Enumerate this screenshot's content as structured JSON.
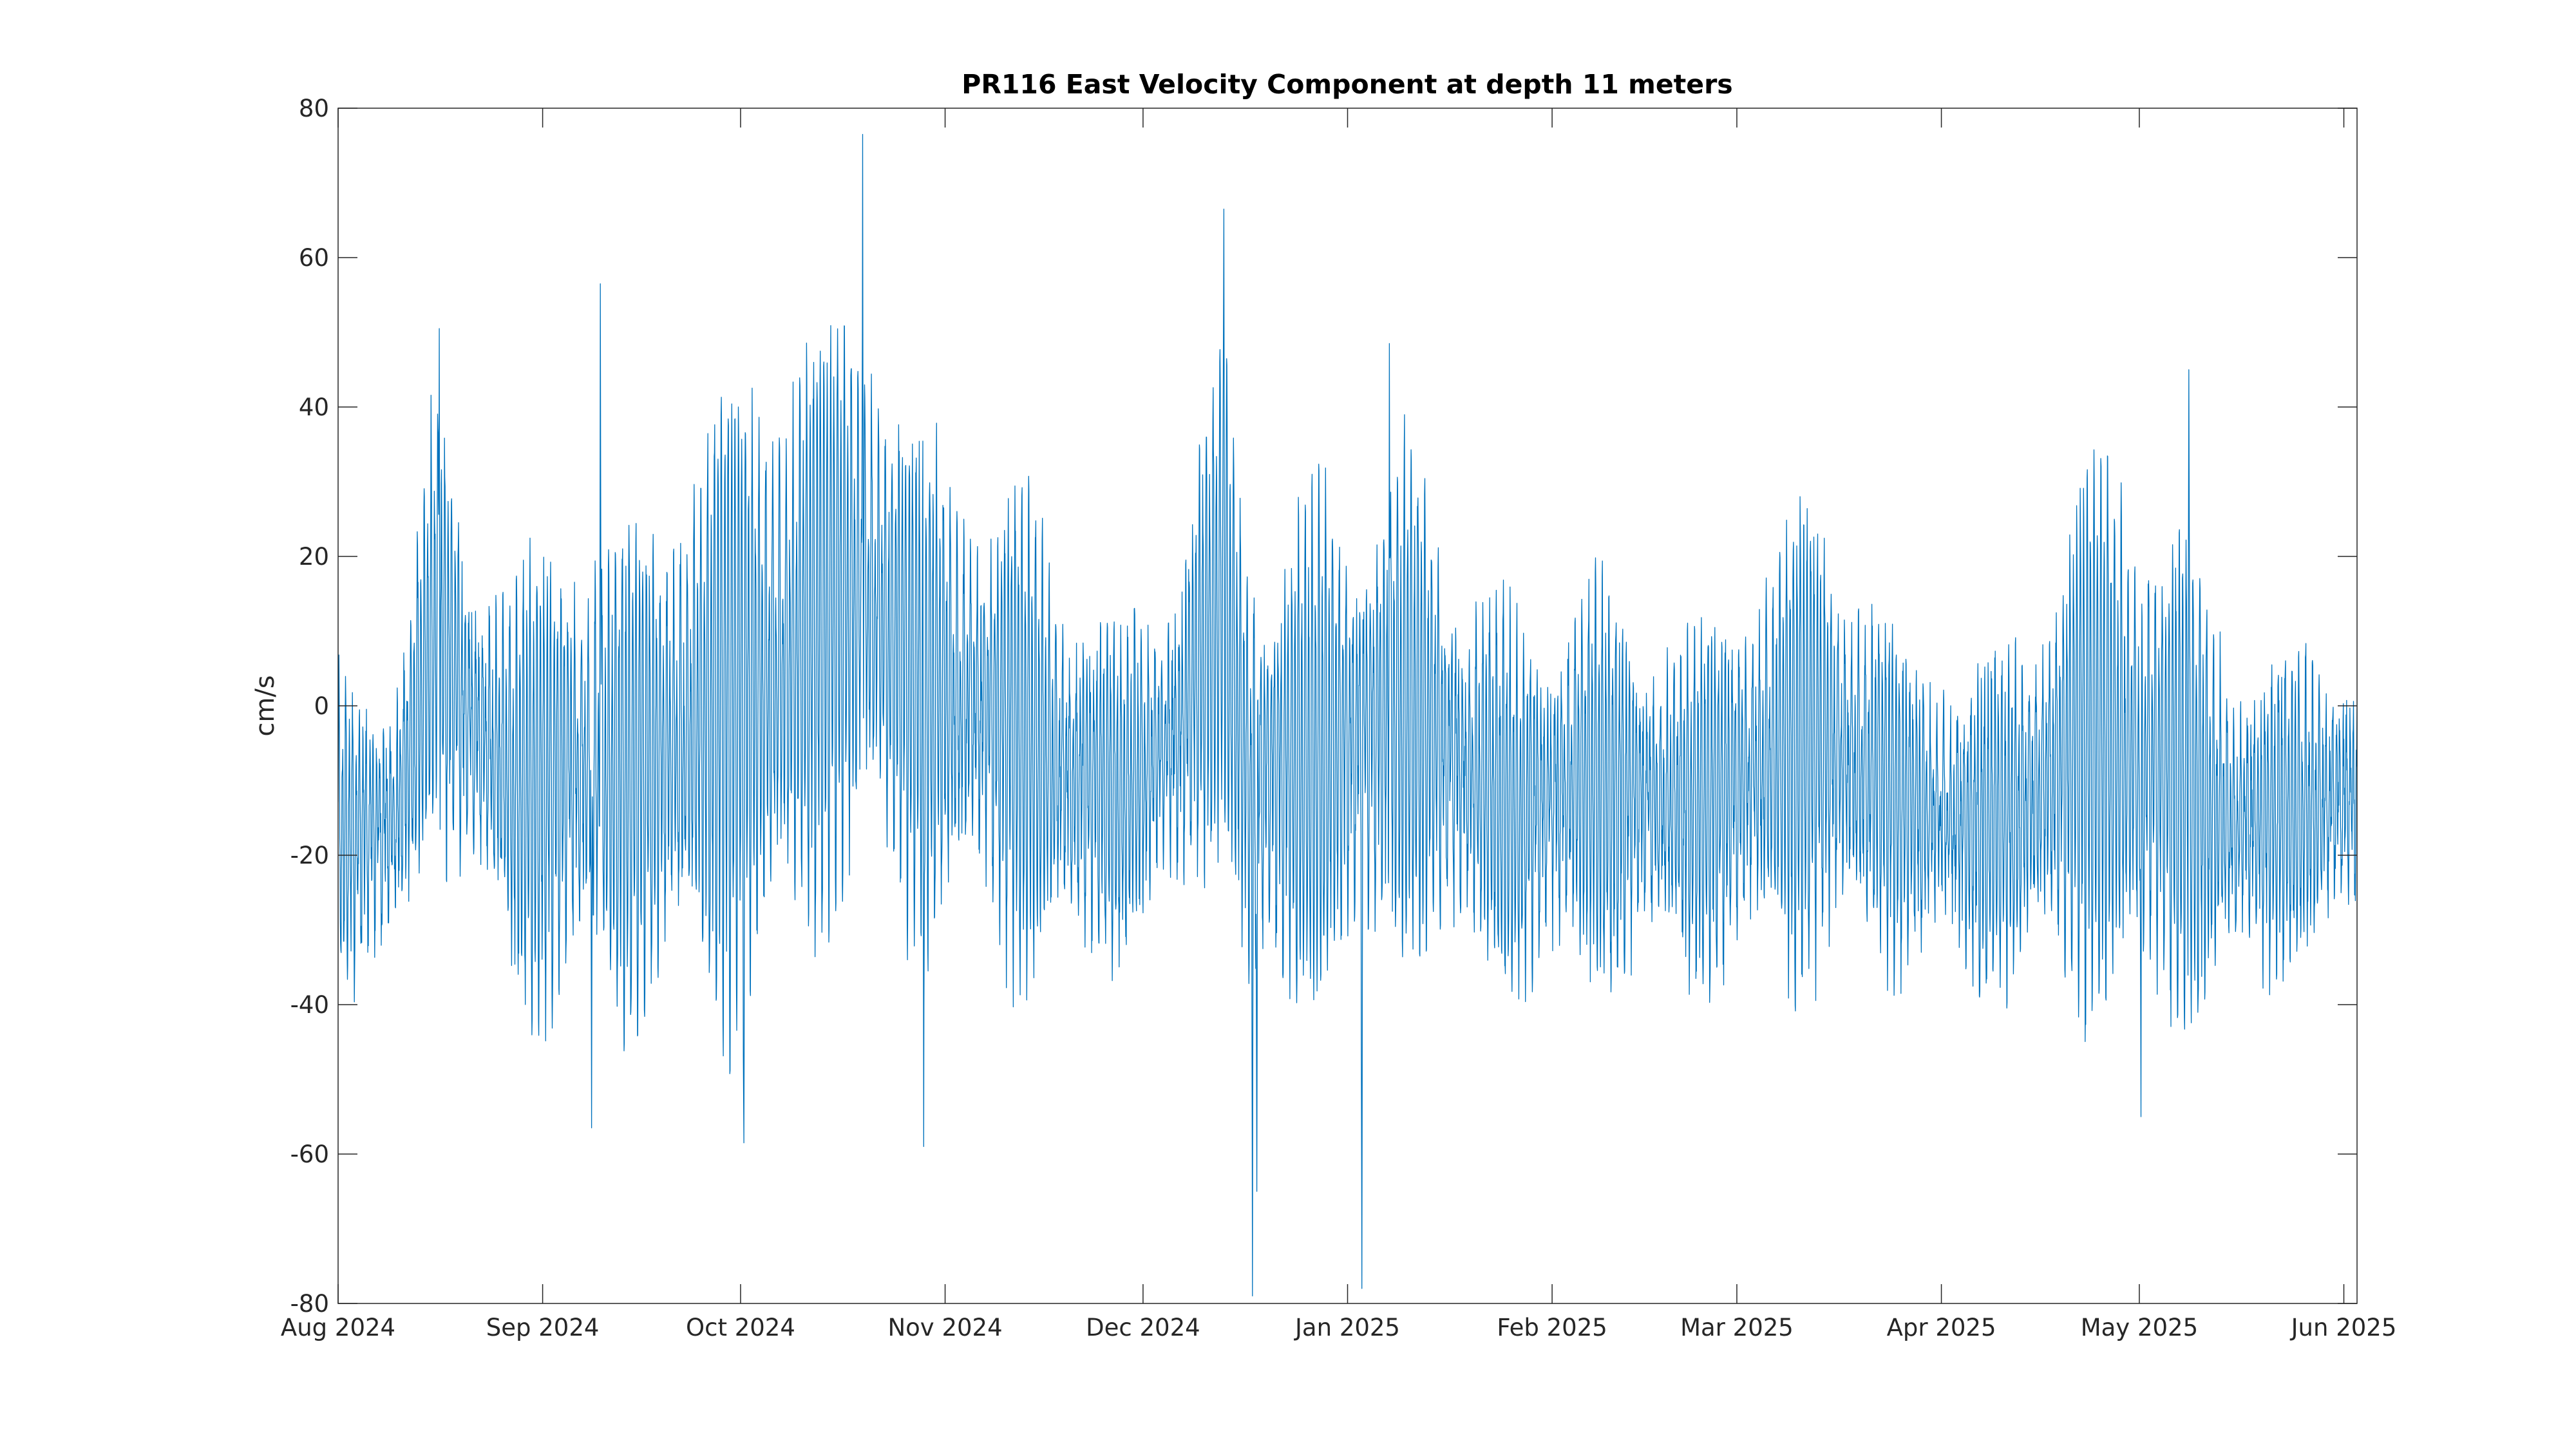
{
  "chart_data": {
    "type": "line",
    "title": "PR116 East Velocity Component at depth 11 meters",
    "xlabel": "",
    "ylabel": "cm/s",
    "x_type": "date",
    "xlim": [
      "2024-08-01",
      "2025-06-03"
    ],
    "ylim": [
      -80,
      80
    ],
    "yticks": [
      -80,
      -60,
      -40,
      -20,
      0,
      20,
      40,
      60,
      80
    ],
    "xticks": [
      {
        "date": "2024-08-01",
        "label": "Aug 2024"
      },
      {
        "date": "2024-09-01",
        "label": "Sep 2024"
      },
      {
        "date": "2024-10-01",
        "label": "Oct 2024"
      },
      {
        "date": "2024-11-01",
        "label": "Nov 2024"
      },
      {
        "date": "2024-12-01",
        "label": "Dec 2024"
      },
      {
        "date": "2025-01-01",
        "label": "Jan 2025"
      },
      {
        "date": "2025-02-01",
        "label": "Feb 2025"
      },
      {
        "date": "2025-03-01",
        "label": "Mar 2025"
      },
      {
        "date": "2025-04-01",
        "label": "Apr 2025"
      },
      {
        "date": "2025-05-01",
        "label": "May 2025"
      },
      {
        "date": "2025-06-01",
        "label": "Jun 2025"
      }
    ],
    "grid": false,
    "legend": "none",
    "series": [
      {
        "color": "#0072BD",
        "sampling": "hourly, tidal oscillation (~12.42 h period) about a daily-mean level",
        "daily_mean": [
          {
            "date": "2024-08-01",
            "value": -18,
            "amplitude": 16
          },
          {
            "date": "2024-08-10",
            "value": -15,
            "amplitude": 18
          },
          {
            "date": "2024-08-16",
            "value": 12,
            "amplitude": 25
          },
          {
            "date": "2024-08-20",
            "value": 0,
            "amplitude": 22
          },
          {
            "date": "2024-08-28",
            "value": -12,
            "amplitude": 24
          },
          {
            "date": "2024-09-05",
            "value": -8,
            "amplitude": 30
          },
          {
            "date": "2024-09-12",
            "value": -10,
            "amplitude": 28
          },
          {
            "date": "2024-09-20",
            "value": -6,
            "amplitude": 30
          },
          {
            "date": "2024-09-28",
            "value": 0,
            "amplitude": 38
          },
          {
            "date": "2024-10-06",
            "value": 4,
            "amplitude": 40
          },
          {
            "date": "2024-10-14",
            "value": 12,
            "amplitude": 34
          },
          {
            "date": "2024-10-20",
            "value": 15,
            "amplitude": 36
          },
          {
            "date": "2024-10-28",
            "value": 3,
            "amplitude": 30
          },
          {
            "date": "2024-11-06",
            "value": 0,
            "amplitude": 24
          },
          {
            "date": "2024-11-14",
            "value": -5,
            "amplitude": 28
          },
          {
            "date": "2024-11-20",
            "value": -10,
            "amplitude": 22
          },
          {
            "date": "2024-11-28",
            "value": -12,
            "amplitude": 18
          },
          {
            "date": "2024-12-06",
            "value": -4,
            "amplitude": 22
          },
          {
            "date": "2024-12-13",
            "value": 15,
            "amplitude": 28
          },
          {
            "date": "2024-12-17",
            "value": -10,
            "amplitude": 30
          },
          {
            "date": "2024-12-24",
            "value": -8,
            "amplitude": 28
          },
          {
            "date": "2025-01-01",
            "value": -5,
            "amplitude": 30
          },
          {
            "date": "2025-01-10",
            "value": 0,
            "amplitude": 30
          },
          {
            "date": "2025-01-18",
            "value": -8,
            "amplitude": 24
          },
          {
            "date": "2025-01-27",
            "value": -14,
            "amplitude": 20
          },
          {
            "date": "2025-02-05",
            "value": -10,
            "amplitude": 24
          },
          {
            "date": "2025-02-14",
            "value": -12,
            "amplitude": 20
          },
          {
            "date": "2025-02-22",
            "value": -14,
            "amplitude": 20
          },
          {
            "date": "2025-03-05",
            "value": -8,
            "amplitude": 24
          },
          {
            "date": "2025-03-12",
            "value": -4,
            "amplitude": 28
          },
          {
            "date": "2025-03-20",
            "value": -8,
            "amplitude": 22
          },
          {
            "date": "2025-03-28",
            "value": -14,
            "amplitude": 16
          },
          {
            "date": "2025-04-06",
            "value": -16,
            "amplitude": 18
          },
          {
            "date": "2025-04-14",
            "value": -14,
            "amplitude": 20
          },
          {
            "date": "2025-04-22",
            "value": -4,
            "amplitude": 32
          },
          {
            "date": "2025-05-01",
            "value": -6,
            "amplitude": 34
          },
          {
            "date": "2025-05-08",
            "value": -10,
            "amplitude": 28
          },
          {
            "date": "2025-05-16",
            "value": -16,
            "amplitude": 18
          },
          {
            "date": "2025-05-24",
            "value": -14,
            "amplitude": 18
          },
          {
            "date": "2025-06-03",
            "value": -12,
            "amplitude": 16
          }
        ],
        "extremes": [
          {
            "datetime": "2024-10-19T12:00",
            "value": 76.5
          },
          {
            "datetime": "2024-12-13T06:00",
            "value": 66.5
          },
          {
            "datetime": "2024-12-17T14:00",
            "value": -79
          },
          {
            "datetime": "2024-12-18T06:00",
            "value": -65
          },
          {
            "datetime": "2025-01-03T04:00",
            "value": -78
          },
          {
            "datetime": "2024-09-09T18:00",
            "value": 56.5
          },
          {
            "datetime": "2024-10-28T18:00",
            "value": -59
          },
          {
            "datetime": "2024-09-08T10:00",
            "value": -56.5
          },
          {
            "datetime": "2024-10-01T12:00",
            "value": -58.5
          },
          {
            "datetime": "2024-08-16T08:00",
            "value": 50.5
          },
          {
            "datetime": "2025-05-08T12:00",
            "value": 45
          },
          {
            "datetime": "2025-05-01T06:00",
            "value": -55
          },
          {
            "datetime": "2025-01-07T08:00",
            "value": 48.5
          }
        ]
      }
    ]
  }
}
